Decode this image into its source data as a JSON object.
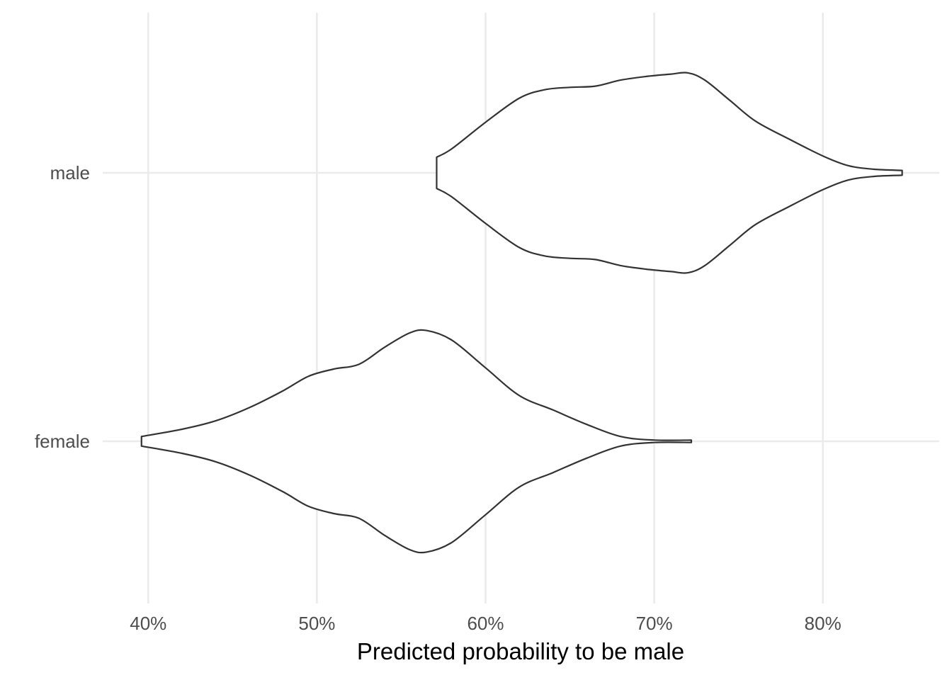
{
  "chart_data": {
    "type": "violin",
    "orientation": "horizontal",
    "title": "",
    "xlabel": "Predicted probability to be male",
    "ylabel": "",
    "xlim": [
      37.3,
      86.9
    ],
    "x_ticks": [
      40,
      50,
      60,
      70,
      80
    ],
    "x_tick_labels": [
      "40%",
      "50%",
      "60%",
      "70%",
      "80%"
    ],
    "categories": [
      "male",
      "female"
    ],
    "grid": true,
    "legend": "none",
    "line_color": "#333333",
    "fill_color": "#ffffff",
    "grid_color": "#ebebeb",
    "series": [
      {
        "name": "male",
        "min": 57.1,
        "max": 84.7,
        "profile": [
          [
            57.1,
            0.13
          ],
          [
            58.0,
            0.2
          ],
          [
            60.0,
            0.42
          ],
          [
            62.0,
            0.62
          ],
          [
            63.5,
            0.69
          ],
          [
            65.0,
            0.71
          ],
          [
            66.5,
            0.72
          ],
          [
            68.0,
            0.77
          ],
          [
            69.5,
            0.8
          ],
          [
            71.0,
            0.82
          ],
          [
            72.0,
            0.83
          ],
          [
            73.0,
            0.77
          ],
          [
            74.5,
            0.6
          ],
          [
            76.0,
            0.43
          ],
          [
            78.0,
            0.28
          ],
          [
            80.0,
            0.14
          ],
          [
            81.5,
            0.06
          ],
          [
            83.0,
            0.03
          ],
          [
            84.7,
            0.02
          ]
        ]
      },
      {
        "name": "female",
        "min": 39.6,
        "max": 72.2,
        "profile": [
          [
            39.6,
            0.04
          ],
          [
            42.0,
            0.1
          ],
          [
            44.0,
            0.17
          ],
          [
            46.0,
            0.28
          ],
          [
            48.0,
            0.42
          ],
          [
            49.5,
            0.54
          ],
          [
            51.0,
            0.6
          ],
          [
            52.5,
            0.64
          ],
          [
            54.0,
            0.78
          ],
          [
            55.5,
            0.9
          ],
          [
            56.5,
            0.92
          ],
          [
            58.0,
            0.84
          ],
          [
            60.0,
            0.61
          ],
          [
            62.0,
            0.38
          ],
          [
            64.0,
            0.26
          ],
          [
            66.0,
            0.14
          ],
          [
            68.0,
            0.04
          ],
          [
            70.0,
            0.01
          ],
          [
            72.2,
            0.01
          ]
        ]
      }
    ]
  }
}
